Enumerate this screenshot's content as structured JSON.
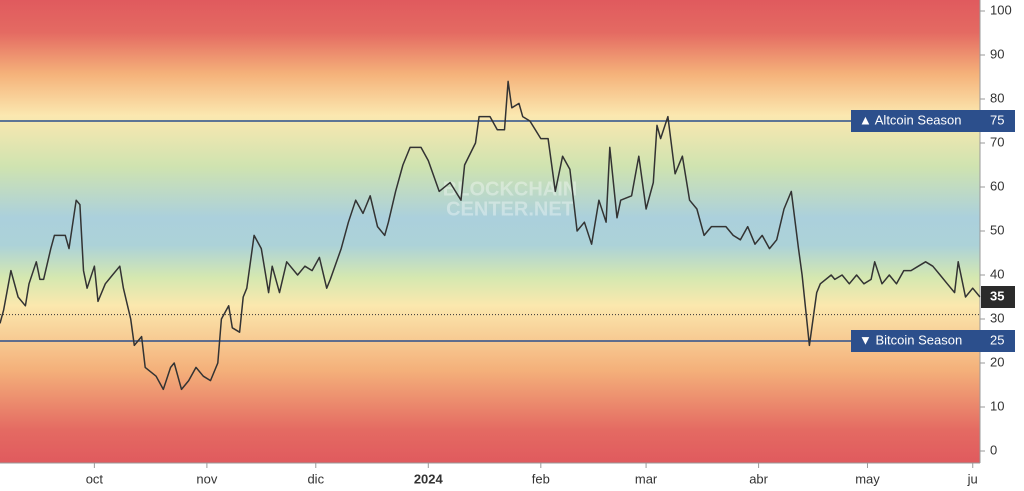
{
  "chart_data": {
    "type": "line",
    "x": [
      0,
      1,
      3,
      5,
      7,
      8,
      10,
      11,
      12,
      14,
      15,
      18,
      19,
      21,
      22,
      23,
      24,
      26,
      27,
      29,
      31,
      33,
      34,
      36,
      37,
      39,
      40,
      43,
      45,
      47,
      48,
      50,
      52,
      54,
      56,
      58,
      60,
      61,
      63,
      64,
      66,
      67,
      68,
      70,
      72,
      74,
      75,
      77,
      79,
      82,
      84,
      86,
      88,
      90,
      91,
      94,
      96,
      98,
      100,
      102,
      104,
      106,
      107,
      109,
      111,
      113,
      116,
      118,
      121,
      124,
      127,
      128,
      131,
      132,
      135,
      137,
      139,
      140,
      141,
      143,
      144,
      146,
      149,
      151,
      153,
      155,
      157,
      159,
      161,
      163,
      165,
      167,
      168,
      170,
      171,
      174,
      176,
      178,
      180,
      181,
      182,
      184,
      186,
      188,
      190,
      192,
      194,
      196,
      198,
      200,
      202,
      204,
      206,
      208,
      210,
      212,
      214,
      216,
      218,
      220,
      221,
      223,
      225,
      226,
      229,
      230,
      232,
      234,
      236,
      238,
      240,
      241,
      243,
      245,
      247,
      249,
      251,
      253,
      255,
      257,
      259,
      261,
      263,
      264,
      266,
      268,
      270
    ],
    "values": [
      29,
      32,
      41,
      35,
      33,
      38,
      43,
      39,
      39,
      46,
      49,
      49,
      46,
      57,
      56,
      41,
      37,
      42,
      34,
      38,
      40,
      42,
      37,
      30,
      24,
      26,
      19,
      17,
      14,
      19,
      20,
      14,
      16,
      19,
      17,
      16,
      20,
      30,
      33,
      28,
      27,
      35,
      37,
      49,
      46,
      36,
      42,
      36,
      43,
      40,
      42,
      41,
      44,
      37,
      39,
      46,
      52,
      57,
      54,
      58,
      51,
      49,
      52,
      59,
      65,
      69,
      69,
      66,
      59,
      61,
      57,
      65,
      70,
      76,
      76,
      73,
      73,
      84,
      78,
      79,
      76,
      75,
      71,
      71,
      59,
      67,
      64,
      50,
      52,
      47,
      57,
      52,
      69,
      53,
      57,
      58,
      67,
      55,
      61,
      74,
      71,
      76,
      63,
      67,
      57,
      55,
      49,
      51,
      51,
      51,
      49,
      48,
      51,
      47,
      49,
      46,
      48,
      55,
      59,
      46,
      40,
      24,
      36,
      38,
      40,
      39,
      40,
      38,
      40,
      38,
      39,
      43,
      38,
      40,
      38,
      41,
      41,
      42,
      43,
      42,
      40,
      38,
      36,
      43,
      35,
      37,
      35
    ],
    "color": "#333333",
    "xlim": [
      0,
      270
    ],
    "xticks": [
      {
        "value": 26,
        "label": "oct"
      },
      {
        "value": 57,
        "label": "nov"
      },
      {
        "value": 87,
        "label": "dic"
      },
      {
        "value": 118,
        "label": "2024"
      },
      {
        "value": 149,
        "label": "feb"
      },
      {
        "value": 178,
        "label": "mar"
      },
      {
        "value": 209,
        "label": "abr"
      },
      {
        "value": 239,
        "label": "may"
      },
      {
        "value": 268,
        "label": "ju"
      }
    ],
    "ylim": [
      0,
      100
    ],
    "yticks": [
      0,
      10,
      20,
      30,
      40,
      50,
      60,
      70,
      80,
      90,
      100
    ],
    "hlines": [
      {
        "value": 75,
        "label": "▲ Altcoin Season",
        "color": "#2c4f8c"
      },
      {
        "value": 25,
        "label": "▼ Bitcoin Season",
        "color": "#2c4f8c"
      }
    ],
    "reference_line": 31,
    "watermark": [
      "BLOCKCHAIN",
      "CENTER.NET"
    ]
  }
}
